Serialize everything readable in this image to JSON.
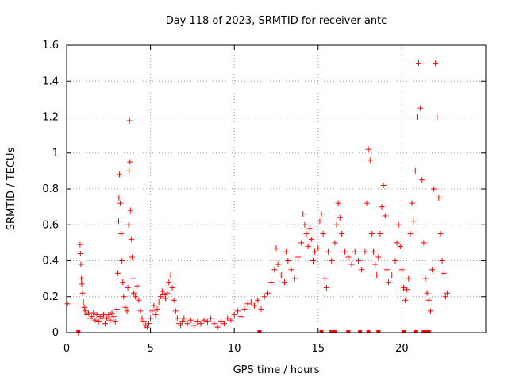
{
  "chart_data": {
    "type": "scatter",
    "title": "Day 118 of 2023, SRMTID for receiver antc",
    "xlabel": "GPS time / hours",
    "ylabel": "SRMTID / TECUs",
    "xlim": [
      0,
      25
    ],
    "ylim": [
      0,
      1.6
    ],
    "xticks": [
      0,
      5,
      10,
      15,
      20
    ],
    "xtick_labels": [
      "0",
      "5",
      "10",
      "15",
      "20"
    ],
    "yticks": [
      0,
      0.2,
      0.4,
      0.6,
      0.8,
      1.0,
      1.2,
      1.4,
      1.6
    ],
    "ytick_labels": [
      "0",
      "0.2",
      "0.4",
      "0.6",
      "0.8",
      "1",
      "1.2",
      "1.4",
      "1.6"
    ],
    "grid": true,
    "marker": "+",
    "color": "#ff0000",
    "series": [
      {
        "name": "SRMTID",
        "points": [
          [
            0.0,
            0.17
          ],
          [
            0.05,
            0.16
          ],
          [
            0.7,
            0.0
          ],
          [
            0.8,
            0.49
          ],
          [
            0.82,
            0.44
          ],
          [
            0.85,
            0.38
          ],
          [
            0.88,
            0.3
          ],
          [
            0.9,
            0.27
          ],
          [
            0.95,
            0.22
          ],
          [
            1.0,
            0.17
          ],
          [
            1.05,
            0.14
          ],
          [
            1.1,
            0.12
          ],
          [
            1.2,
            0.1
          ],
          [
            1.3,
            0.11
          ],
          [
            1.4,
            0.08
          ],
          [
            1.5,
            0.09
          ],
          [
            1.6,
            0.11
          ],
          [
            1.7,
            0.07
          ],
          [
            1.8,
            0.1
          ],
          [
            1.9,
            0.06
          ],
          [
            2.0,
            0.09
          ],
          [
            2.1,
            0.08
          ],
          [
            2.2,
            0.1
          ],
          [
            2.3,
            0.05
          ],
          [
            2.4,
            0.08
          ],
          [
            2.5,
            0.1
          ],
          [
            2.6,
            0.07
          ],
          [
            2.7,
            0.11
          ],
          [
            2.8,
            0.09
          ],
          [
            2.9,
            0.06
          ],
          [
            3.0,
            0.13
          ],
          [
            3.05,
            0.33
          ],
          [
            3.1,
            0.62
          ],
          [
            3.12,
            0.75
          ],
          [
            3.15,
            0.88
          ],
          [
            3.2,
            0.72
          ],
          [
            3.25,
            0.55
          ],
          [
            3.3,
            0.4
          ],
          [
            3.35,
            0.28
          ],
          [
            3.4,
            0.2
          ],
          [
            3.5,
            0.14
          ],
          [
            3.6,
            0.12
          ],
          [
            3.65,
            0.25
          ],
          [
            3.7,
            0.6
          ],
          [
            3.72,
            0.9
          ],
          [
            3.75,
            1.18
          ],
          [
            3.78,
            0.95
          ],
          [
            3.8,
            0.68
          ],
          [
            3.85,
            0.52
          ],
          [
            3.9,
            0.42
          ],
          [
            3.95,
            0.3
          ],
          [
            4.0,
            0.22
          ],
          [
            4.1,
            0.2
          ],
          [
            4.2,
            0.26
          ],
          [
            4.3,
            0.18
          ],
          [
            4.4,
            0.12
          ],
          [
            4.5,
            0.08
          ],
          [
            4.6,
            0.06
          ],
          [
            4.7,
            0.04
          ],
          [
            4.8,
            0.03
          ],
          [
            4.9,
            0.05
          ],
          [
            5.0,
            0.08
          ],
          [
            5.1,
            0.12
          ],
          [
            5.2,
            0.15
          ],
          [
            5.3,
            0.1
          ],
          [
            5.4,
            0.13
          ],
          [
            5.5,
            0.17
          ],
          [
            5.6,
            0.2
          ],
          [
            5.7,
            0.23
          ],
          [
            5.8,
            0.21
          ],
          [
            5.9,
            0.19
          ],
          [
            6.0,
            0.22
          ],
          [
            6.1,
            0.28
          ],
          [
            6.2,
            0.32
          ],
          [
            6.3,
            0.25
          ],
          [
            6.4,
            0.18
          ],
          [
            6.5,
            0.12
          ],
          [
            6.6,
            0.08
          ],
          [
            6.7,
            0.05
          ],
          [
            6.8,
            0.04
          ],
          [
            6.9,
            0.06
          ],
          [
            7.0,
            0.08
          ],
          [
            7.2,
            0.05
          ],
          [
            7.4,
            0.07
          ],
          [
            7.6,
            0.04
          ],
          [
            7.8,
            0.06
          ],
          [
            8.0,
            0.05
          ],
          [
            8.2,
            0.07
          ],
          [
            8.4,
            0.06
          ],
          [
            8.6,
            0.08
          ],
          [
            8.8,
            0.05
          ],
          [
            9.0,
            0.03
          ],
          [
            9.2,
            0.06
          ],
          [
            9.4,
            0.05
          ],
          [
            9.6,
            0.08
          ],
          [
            9.8,
            0.07
          ],
          [
            10.0,
            0.1
          ],
          [
            10.2,
            0.12
          ],
          [
            10.4,
            0.09
          ],
          [
            10.6,
            0.13
          ],
          [
            10.8,
            0.16
          ],
          [
            11.0,
            0.17
          ],
          [
            11.2,
            0.15
          ],
          [
            11.4,
            0.18
          ],
          [
            11.6,
            0.13
          ],
          [
            11.8,
            0.2
          ],
          [
            12.0,
            0.22
          ],
          [
            12.2,
            0.28
          ],
          [
            12.4,
            0.35
          ],
          [
            12.5,
            0.47
          ],
          [
            12.6,
            0.38
          ],
          [
            12.8,
            0.32
          ],
          [
            13.0,
            0.28
          ],
          [
            13.1,
            0.45
          ],
          [
            13.2,
            0.4
          ],
          [
            13.4,
            0.35
          ],
          [
            13.6,
            0.3
          ],
          [
            13.8,
            0.42
          ],
          [
            14.0,
            0.5
          ],
          [
            14.1,
            0.66
          ],
          [
            14.2,
            0.6
          ],
          [
            14.3,
            0.55
          ],
          [
            14.4,
            0.48
          ],
          [
            14.5,
            0.58
          ],
          [
            14.6,
            0.52
          ],
          [
            14.7,
            0.4
          ],
          [
            14.8,
            0.45
          ],
          [
            15.0,
            0.47
          ],
          [
            15.1,
            0.62
          ],
          [
            15.2,
            0.66
          ],
          [
            15.3,
            0.55
          ],
          [
            15.4,
            0.3
          ],
          [
            15.5,
            0.25
          ],
          [
            15.6,
            0.45
          ],
          [
            15.8,
            0.4
          ],
          [
            16.0,
            0.5
          ],
          [
            16.1,
            0.6
          ],
          [
            16.2,
            0.72
          ],
          [
            16.3,
            0.64
          ],
          [
            16.4,
            0.55
          ],
          [
            16.6,
            0.45
          ],
          [
            16.8,
            0.42
          ],
          [
            17.0,
            0.38
          ],
          [
            17.2,
            0.45
          ],
          [
            17.4,
            0.4
          ],
          [
            17.6,
            0.35
          ],
          [
            17.8,
            0.45
          ],
          [
            17.9,
            0.72
          ],
          [
            18.0,
            1.02
          ],
          [
            18.1,
            0.96
          ],
          [
            18.2,
            0.55
          ],
          [
            18.3,
            0.45
          ],
          [
            18.4,
            0.38
          ],
          [
            18.5,
            0.32
          ],
          [
            18.6,
            0.42
          ],
          [
            18.7,
            0.55
          ],
          [
            18.8,
            0.7
          ],
          [
            18.9,
            0.82
          ],
          [
            19.0,
            0.65
          ],
          [
            19.1,
            0.35
          ],
          [
            19.2,
            0.28
          ],
          [
            19.4,
            0.32
          ],
          [
            19.6,
            0.4
          ],
          [
            19.7,
            0.5
          ],
          [
            19.8,
            0.6
          ],
          [
            19.9,
            0.48
          ],
          [
            20.0,
            0.35
          ],
          [
            20.1,
            0.25
          ],
          [
            20.2,
            0.18
          ],
          [
            20.3,
            0.24
          ],
          [
            20.4,
            0.3
          ],
          [
            20.5,
            0.55
          ],
          [
            20.6,
            0.72
          ],
          [
            20.7,
            0.62
          ],
          [
            20.8,
            0.9
          ],
          [
            20.9,
            1.2
          ],
          [
            21.0,
            1.5
          ],
          [
            21.1,
            1.25
          ],
          [
            21.2,
            0.85
          ],
          [
            21.3,
            0.5
          ],
          [
            21.4,
            0.3
          ],
          [
            21.5,
            0.22
          ],
          [
            21.6,
            0.18
          ],
          [
            21.7,
            0.12
          ],
          [
            21.8,
            0.35
          ],
          [
            21.9,
            0.8
          ],
          [
            22.0,
            1.5
          ],
          [
            22.1,
            1.2
          ],
          [
            22.2,
            0.75
          ],
          [
            22.3,
            0.55
          ],
          [
            22.4,
            0.4
          ],
          [
            22.5,
            0.33
          ],
          [
            22.6,
            0.2
          ],
          [
            22.7,
            0.22
          ]
        ]
      }
    ],
    "zero_points_x": [
      0.7,
      11.5,
      15.2,
      15.8,
      16.0,
      16.8,
      17.5,
      18.0,
      18.6,
      20.1,
      20.8,
      21.3,
      21.4,
      21.6
    ]
  }
}
